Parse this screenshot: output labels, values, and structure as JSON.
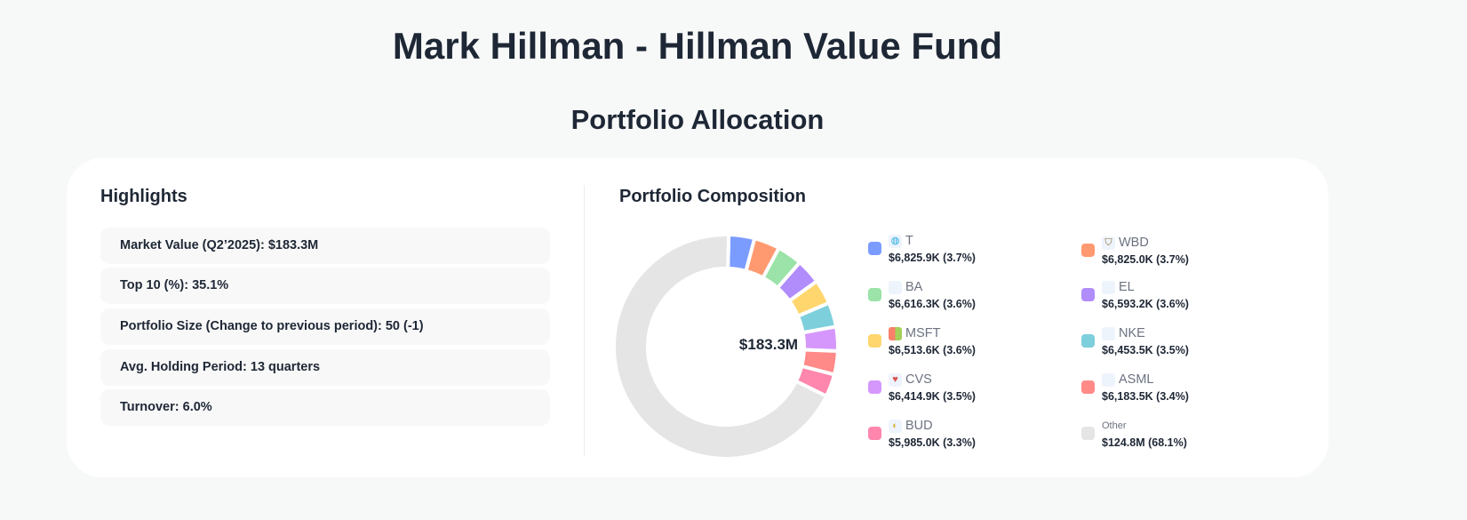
{
  "header": {
    "title": "Mark Hillman - Hillman Value Fund",
    "subtitle": "Portfolio Allocation"
  },
  "highlights": {
    "heading": "Highlights",
    "items": [
      "Market Value (Q2’2025): $183.3M",
      "Top 10 (%): 35.1%",
      "Portfolio Size (Change to previous period): 50 (-1)",
      "Avg. Holding Period: 13 quarters",
      "Turnover: 6.0%"
    ]
  },
  "chart_data": {
    "type": "pie",
    "title": "Portfolio Composition",
    "center_label": "$183.3M",
    "legend_placement": "right",
    "slices": [
      {
        "ticker": "T",
        "value_label": "$6,825.9K (3.7%)",
        "value": 6825.9,
        "percent": 3.7,
        "color": "#7b9cff",
        "icon": "att-globe-icon"
      },
      {
        "ticker": "WBD",
        "value_label": "$6,825.0K (3.7%)",
        "value": 6825.0,
        "percent": 3.7,
        "color": "#ff9a70",
        "icon": "wb-shield-icon"
      },
      {
        "ticker": "BA",
        "value_label": "$6,616.3K (3.6%)",
        "value": 6616.3,
        "percent": 3.6,
        "color": "#9be3a8",
        "icon": "boeing-logo-icon"
      },
      {
        "ticker": "EL",
        "value_label": "$6,593.2K (3.6%)",
        "value": 6593.2,
        "percent": 3.6,
        "color": "#b18cfb",
        "icon": "estee-lauder-logo-icon"
      },
      {
        "ticker": "MSFT",
        "value_label": "$6,513.6K (3.6%)",
        "value": 6513.6,
        "percent": 3.6,
        "color": "#ffd66e",
        "icon": "microsoft-logo-icon"
      },
      {
        "ticker": "NKE",
        "value_label": "$6,453.5K (3.5%)",
        "value": 6453.5,
        "percent": 3.5,
        "color": "#7ecfdc",
        "icon": "nike-swoosh-icon"
      },
      {
        "ticker": "CVS",
        "value_label": "$6,414.9K (3.5%)",
        "value": 6414.9,
        "percent": 3.5,
        "color": "#d597fc",
        "icon": "cvs-heart-icon"
      },
      {
        "ticker": "ASML",
        "value_label": "$6,183.5K (3.4%)",
        "value": 6183.5,
        "percent": 3.4,
        "color": "#ff8a87",
        "icon": "asml-logo-icon"
      },
      {
        "ticker": "BUD",
        "value_label": "$5,985.0K (3.3%)",
        "value": 5985.0,
        "percent": 3.3,
        "color": "#ff86ad",
        "icon": "bud-logo-icon"
      },
      {
        "ticker": "Other",
        "value_label": "$124.8M (68.1%)",
        "value": 124800,
        "percent": 68.1,
        "color": "#e4e5e4",
        "icon": ""
      }
    ]
  }
}
